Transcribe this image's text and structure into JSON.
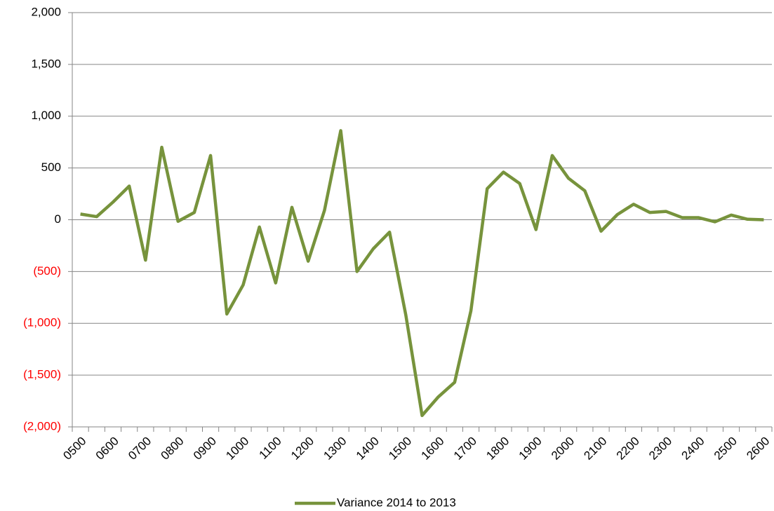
{
  "chart_data": {
    "type": "line",
    "categories": [
      "0500",
      null,
      "0600",
      null,
      "0700",
      null,
      "0800",
      null,
      "0900",
      null,
      "1000",
      null,
      "1100",
      null,
      "1200",
      null,
      "1300",
      null,
      "1400",
      null,
      "1500",
      null,
      "1600",
      null,
      "1700",
      null,
      "1800",
      null,
      "1900",
      null,
      "2000",
      null,
      "2100",
      null,
      "2200",
      null,
      "2300",
      null,
      "2400",
      null,
      "2500",
      null,
      "2600"
    ],
    "series": [
      {
        "name": "Variance 2014 to 2013",
        "color": "#77933c",
        "values": [
          55,
          30,
          170,
          325,
          -390,
          700,
          -15,
          70,
          620,
          -910,
          -630,
          -70,
          -610,
          120,
          -400,
          90,
          860,
          -500,
          -280,
          -120,
          -920,
          -1890,
          -1710,
          -1570,
          -880,
          300,
          460,
          350,
          -95,
          620,
          400,
          280,
          -110,
          50,
          150,
          70,
          80,
          20,
          20,
          -20,
          45,
          5,
          0
        ]
      }
    ],
    "ylim": [
      -2000,
      2000
    ],
    "yticks": [
      {
        "value": -2000,
        "label": "(2,000)"
      },
      {
        "value": -1500,
        "label": "(1,500)"
      },
      {
        "value": -1000,
        "label": "(1,000)"
      },
      {
        "value": -500,
        "label": "(500)"
      },
      0,
      {
        "value": 500,
        "label": "500"
      },
      {
        "value": 1000,
        "label": "1,000"
      },
      {
        "value": 1500,
        "label": "1,500"
      },
      {
        "value": 2000,
        "label": "2,000"
      }
    ],
    "negative_tick_color": "#ff0000",
    "grid": true,
    "legend": "bottom"
  }
}
